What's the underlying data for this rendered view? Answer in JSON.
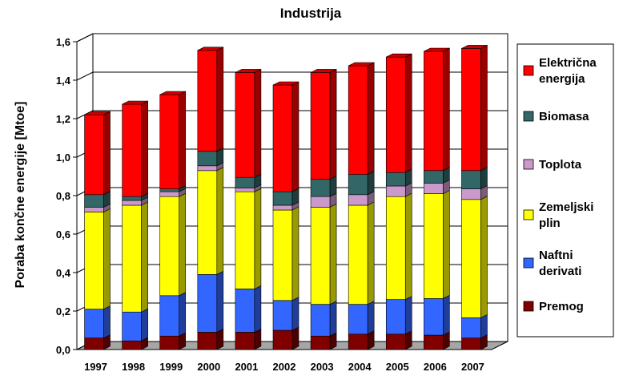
{
  "chart_data": {
    "type": "bar",
    "stacked": true,
    "style": "3d",
    "title": "Industrija",
    "xlabel": "",
    "ylabel": "Poraba končne energije [Mtoe]",
    "ylim": [
      0,
      1.6
    ],
    "yticks": [
      "0,0",
      "0,2",
      "0,4",
      "0,6",
      "0,8",
      "1,0",
      "1,2",
      "1,4",
      "1,6"
    ],
    "grid": true,
    "legend_position": "right",
    "categories": [
      "1997",
      "1998",
      "1999",
      "2000",
      "2001",
      "2002",
      "2003",
      "2004",
      "2005",
      "2006",
      "2007"
    ],
    "series": [
      {
        "name": "Premog",
        "color": "#800000",
        "values": [
          0.06,
          0.045,
          0.07,
          0.09,
          0.09,
          0.1,
          0.07,
          0.08,
          0.08,
          0.075,
          0.06
        ]
      },
      {
        "name": "Naftni derivati",
        "color": "#3366ff",
        "values": [
          0.15,
          0.15,
          0.21,
          0.3,
          0.225,
          0.155,
          0.165,
          0.155,
          0.18,
          0.19,
          0.105
        ]
      },
      {
        "name": "Zemeljski plin",
        "color": "#ffff00",
        "values": [
          0.505,
          0.555,
          0.515,
          0.54,
          0.505,
          0.47,
          0.505,
          0.515,
          0.535,
          0.545,
          0.615
        ]
      },
      {
        "name": "Toplota",
        "color": "#cc99cc",
        "values": [
          0.025,
          0.025,
          0.025,
          0.025,
          0.02,
          0.025,
          0.055,
          0.055,
          0.055,
          0.055,
          0.055
        ]
      },
      {
        "name": "Biomasa",
        "color": "#336666",
        "values": [
          0.065,
          0.02,
          0.015,
          0.075,
          0.055,
          0.07,
          0.09,
          0.105,
          0.07,
          0.065,
          0.095
        ]
      },
      {
        "name": "Električna energija",
        "color": "#ff0000",
        "values": [
          0.415,
          0.48,
          0.49,
          0.525,
          0.545,
          0.555,
          0.555,
          0.565,
          0.6,
          0.62,
          0.635
        ]
      }
    ],
    "legend_labels": [
      {
        "series": "Električna energija",
        "lines": [
          "Električna",
          "energija"
        ]
      },
      {
        "series": "Biomasa",
        "lines": [
          "Biomasa"
        ]
      },
      {
        "series": "Toplota",
        "lines": [
          "Toplota"
        ]
      },
      {
        "series": "Zemeljski plin",
        "lines": [
          "Zemeljski",
          "plin"
        ]
      },
      {
        "series": "Naftni derivati",
        "lines": [
          "Naftni",
          "derivati"
        ]
      },
      {
        "series": "Premog",
        "lines": [
          "Premog"
        ]
      }
    ]
  }
}
